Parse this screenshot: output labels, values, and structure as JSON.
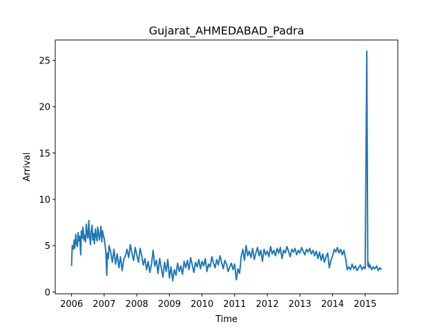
{
  "chart_data": {
    "type": "line",
    "title": "Gujarat_AHMEDABAD_Padra",
    "xlabel": "Time",
    "ylabel": "Arrival",
    "xlim": [
      2005.5,
      2016.0
    ],
    "ylim": [
      -0.2,
      27.2
    ],
    "xticks": [
      2006,
      2007,
      2008,
      2009,
      2010,
      2011,
      2012,
      2013,
      2014,
      2015
    ],
    "yticks": [
      0,
      5,
      10,
      15,
      20,
      25
    ],
    "grid": false,
    "series_color": "#1f77b4",
    "series": [
      {
        "x": [
          2006.0,
          2006.02,
          2006.05,
          2006.08,
          2006.1,
          2006.13,
          2006.15,
          2006.18,
          2006.2,
          2006.23,
          2006.25,
          2006.28,
          2006.3,
          2006.33,
          2006.35,
          2006.38,
          2006.4,
          2006.43,
          2006.45,
          2006.48,
          2006.5,
          2006.53,
          2006.55,
          2006.58,
          2006.6,
          2006.63,
          2006.65,
          2006.68,
          2006.7,
          2006.73,
          2006.75,
          2006.78,
          2006.8,
          2006.83,
          2006.85,
          2006.88,
          2006.9,
          2006.93,
          2006.95,
          2006.98,
          2007.0,
          2007.05,
          2007.08,
          2007.1,
          2007.13,
          2007.15,
          2007.2,
          2007.25,
          2007.3,
          2007.35,
          2007.4,
          2007.45,
          2007.5,
          2007.55,
          2007.6,
          2007.65,
          2007.7,
          2007.75,
          2007.8,
          2007.85,
          2007.9,
          2007.95,
          2008.0,
          2008.05,
          2008.1,
          2008.15,
          2008.2,
          2008.25,
          2008.3,
          2008.35,
          2008.4,
          2008.45,
          2008.5,
          2008.55,
          2008.6,
          2008.65,
          2008.7,
          2008.75,
          2008.8,
          2008.85,
          2008.9,
          2008.95,
          2009.0,
          2009.05,
          2009.1,
          2009.15,
          2009.2,
          2009.25,
          2009.3,
          2009.35,
          2009.4,
          2009.45,
          2009.5,
          2009.55,
          2009.6,
          2009.65,
          2009.7,
          2009.75,
          2009.8,
          2009.85,
          2009.9,
          2009.95,
          2010.0,
          2010.05,
          2010.1,
          2010.15,
          2010.2,
          2010.25,
          2010.3,
          2010.35,
          2010.4,
          2010.45,
          2010.5,
          2010.55,
          2010.6,
          2010.65,
          2010.7,
          2010.75,
          2010.8,
          2010.85,
          2010.9,
          2010.95,
          2011.0,
          2011.05,
          2011.1,
          2011.15,
          2011.2,
          2011.25,
          2011.3,
          2011.35,
          2011.4,
          2011.45,
          2011.5,
          2011.55,
          2011.6,
          2011.65,
          2011.7,
          2011.75,
          2011.8,
          2011.85,
          2011.9,
          2011.95,
          2012.0,
          2012.05,
          2012.1,
          2012.15,
          2012.2,
          2012.25,
          2012.3,
          2012.35,
          2012.4,
          2012.45,
          2012.5,
          2012.55,
          2012.6,
          2012.65,
          2012.7,
          2012.75,
          2012.8,
          2012.85,
          2012.9,
          2012.95,
          2013.0,
          2013.05,
          2013.1,
          2013.15,
          2013.2,
          2013.25,
          2013.3,
          2013.35,
          2013.4,
          2013.45,
          2013.5,
          2013.55,
          2013.6,
          2013.65,
          2013.7,
          2013.75,
          2013.8,
          2013.85,
          2013.9,
          2013.95,
          2014.0,
          2014.05,
          2014.1,
          2014.15,
          2014.2,
          2014.25,
          2014.3,
          2014.35,
          2014.4,
          2014.45,
          2014.5,
          2014.55,
          2014.6,
          2014.65,
          2014.7,
          2014.75,
          2014.8,
          2014.85,
          2014.9,
          2014.95,
          2015.0,
          2015.05,
          2015.08,
          2015.1,
          2015.12,
          2015.15,
          2015.2,
          2015.25,
          2015.3,
          2015.35,
          2015.4,
          2015.45,
          2015.5
        ],
        "y": [
          2.8,
          5.0,
          4.6,
          5.6,
          4.7,
          6.2,
          5.2,
          4.9,
          6.4,
          5.5,
          6.0,
          4.0,
          6.6,
          5.8,
          7.0,
          5.6,
          6.1,
          5.4,
          7.3,
          6.2,
          5.8,
          7.7,
          6.0,
          5.1,
          6.5,
          7.2,
          5.6,
          6.3,
          5.2,
          6.8,
          6.1,
          5.5,
          7.0,
          6.4,
          5.6,
          6.2,
          7.1,
          5.4,
          6.6,
          6.0,
          5.8,
          4.4,
          1.8,
          4.2,
          3.6,
          5.0,
          4.3,
          3.2,
          4.6,
          3.0,
          4.1,
          2.6,
          3.8,
          2.3,
          3.5,
          3.9,
          4.6,
          3.7,
          5.1,
          4.2,
          3.4,
          4.8,
          4.0,
          3.2,
          4.7,
          3.9,
          2.9,
          3.6,
          2.4,
          3.3,
          2.1,
          3.0,
          4.5,
          2.8,
          3.4,
          2.0,
          3.6,
          2.6,
          1.6,
          3.2,
          2.2,
          3.5,
          1.5,
          2.7,
          1.2,
          2.4,
          1.8,
          3.1,
          2.2,
          2.8,
          1.9,
          3.3,
          2.6,
          3.4,
          2.4,
          3.7,
          2.9,
          2.1,
          3.2,
          2.7,
          3.5,
          2.5,
          3.3,
          2.8,
          3.6,
          2.2,
          3.0,
          2.7,
          3.8,
          3.1,
          2.6,
          3.5,
          2.9,
          3.9,
          3.2,
          2.5,
          3.4,
          3.0,
          2.2,
          2.7,
          3.1,
          2.4,
          3.0,
          1.3,
          2.5,
          2.0,
          3.8,
          4.6,
          3.4,
          5.0,
          3.9,
          4.4,
          3.7,
          4.7,
          3.5,
          4.2,
          4.8,
          3.9,
          4.5,
          3.3,
          4.6,
          4.0,
          4.4,
          3.8,
          4.9,
          4.1,
          4.5,
          3.9,
          4.7,
          4.2,
          4.8,
          3.6,
          4.5,
          4.2,
          4.9,
          4.4,
          3.8,
          4.6,
          4.3,
          4.7,
          4.0,
          4.5,
          4.2,
          4.8,
          4.4,
          4.0,
          4.6,
          4.3,
          4.7,
          4.1,
          4.5,
          3.9,
          4.4,
          3.6,
          4.3,
          3.4,
          4.1,
          3.2,
          3.8,
          4.2,
          2.6,
          3.4,
          3.9,
          4.6,
          4.3,
          4.8,
          4.2,
          4.6,
          4.0,
          4.5,
          3.6,
          2.4,
          2.7,
          2.4,
          3.0,
          2.5,
          2.8,
          2.3,
          2.6,
          2.9,
          2.4,
          2.7,
          2.5,
          26.0,
          2.8,
          3.2,
          2.6,
          2.9,
          2.4,
          2.7,
          2.5,
          2.8,
          2.3,
          2.6,
          2.4
        ]
      }
    ]
  }
}
